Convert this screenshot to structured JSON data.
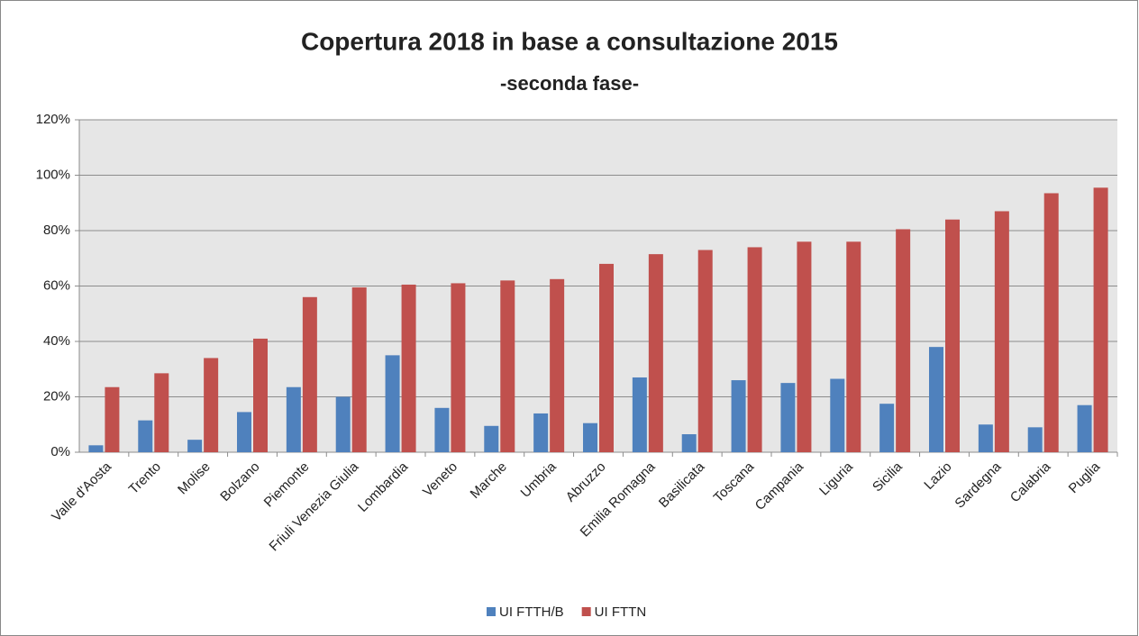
{
  "chart_data": {
    "type": "bar",
    "title": "Copertura 2018 in base a consultazione 2015",
    "subtitle": "-seconda fase-",
    "categories": [
      "Valle d'Aosta",
      "Trento",
      "Molise",
      "Bolzano",
      "Piemonte",
      "Friuli Venezia Giulia",
      "Lombardia",
      "Veneto",
      "Marche",
      "Umbria",
      "Abruzzo",
      "Emilia Romagna",
      "Basilicata",
      "Toscana",
      "Campania",
      "Liguria",
      "Sicilia",
      "Lazio",
      "Sardegna",
      "Calabria",
      "Puglia"
    ],
    "series": [
      {
        "name": "UI FTTH/B",
        "color": "#4f81bd",
        "values": [
          2.5,
          11.5,
          4.5,
          14.5,
          23.5,
          20,
          35,
          16,
          9.5,
          14,
          10.5,
          27,
          6.5,
          26,
          25,
          26.5,
          17.5,
          38,
          10,
          9,
          17
        ]
      },
      {
        "name": "UI FTTN",
        "color": "#c0504d",
        "values": [
          23.5,
          28.5,
          34,
          41,
          56,
          59.5,
          60.5,
          61,
          62,
          62.5,
          68,
          71.5,
          73,
          74,
          76,
          76,
          80.5,
          84,
          87,
          93.5,
          95.5
        ]
      }
    ],
    "ylim": [
      0,
      120
    ],
    "yticks": [
      {
        "value": 0,
        "label": "0%"
      },
      {
        "value": 20,
        "label": "20%"
      },
      {
        "value": 40,
        "label": "40%"
      },
      {
        "value": 60,
        "label": "60%"
      },
      {
        "value": 80,
        "label": "80%"
      },
      {
        "value": 100,
        "label": "100%"
      },
      {
        "value": 120,
        "label": "120%"
      }
    ],
    "grid": true,
    "legend": "bottom"
  }
}
